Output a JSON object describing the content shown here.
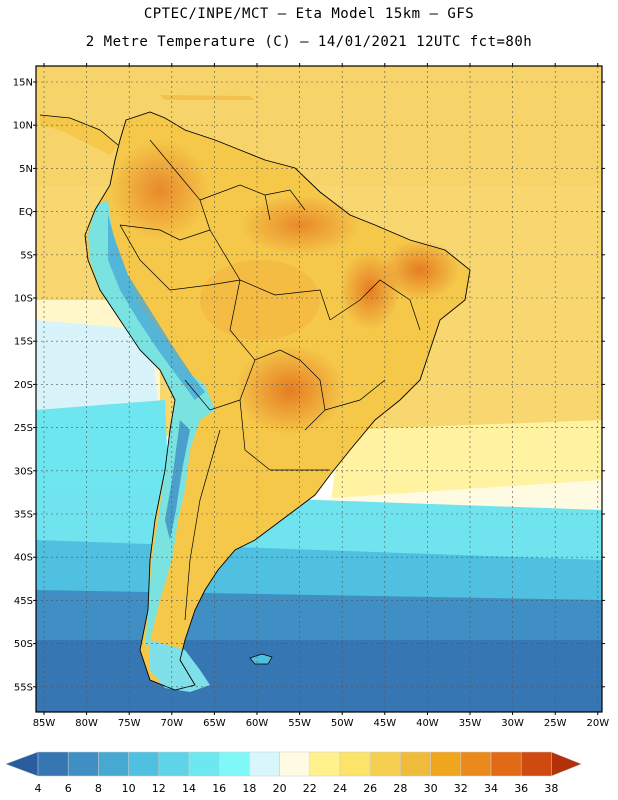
{
  "title_line1": "CPTEC/INPE/MCT –  Eta Model 15km – GFS",
  "title_line2": "2 Metre Temperature (C) – 14/01/2021 12UTC fct=80h",
  "lat_labels": [
    "15N",
    "10N",
    "5N",
    "EQ",
    "5S",
    "10S",
    "15S",
    "20S",
    "25S",
    "30S",
    "35S",
    "40S",
    "45S",
    "50S",
    "55S"
  ],
  "lon_labels": [
    "85W",
    "80W",
    "75W",
    "70W",
    "65W",
    "60W",
    "55W",
    "50W",
    "45W",
    "40W",
    "35W",
    "30W",
    "25W",
    "20W"
  ],
  "colorbar": {
    "labels": [
      "4",
      "6",
      "8",
      "10",
      "12",
      "14",
      "16",
      "18",
      "20",
      "22",
      "24",
      "26",
      "28",
      "30",
      "32",
      "34",
      "36",
      "38"
    ],
    "colors": [
      "#2a5d9f",
      "#3576b3",
      "#3f8fc4",
      "#47a8d2",
      "#4fc0df",
      "#5fd4e8",
      "#6ee8f0",
      "#7ff8f8",
      "#d8f6fb",
      "#fffbe2",
      "#fff28c",
      "#fce36a",
      "#f5cf50",
      "#f0bb3a",
      "#f0a51e",
      "#eb8a1c",
      "#e06a16",
      "#cf4a10",
      "#b33108"
    ]
  },
  "icons": {
    "left_arrow": "colorbar-left-triangle",
    "right_arrow": "colorbar-right-triangle"
  }
}
